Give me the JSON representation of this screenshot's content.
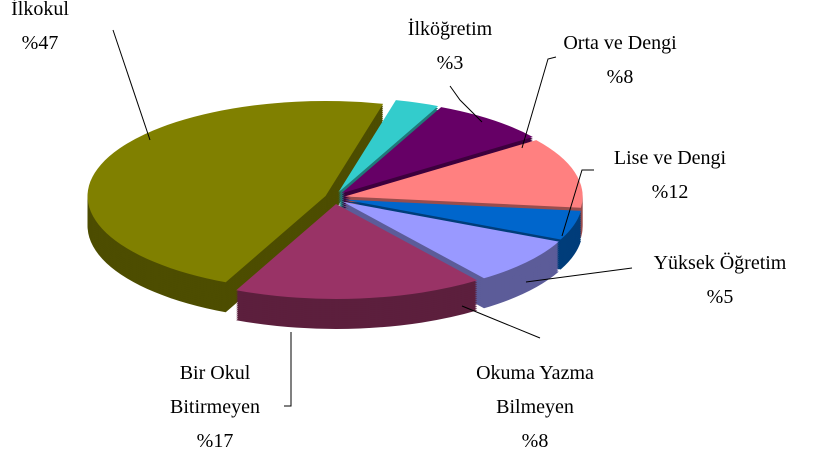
{
  "chart_data": {
    "type": "pie",
    "categories": [
      "İlköğretim",
      "Orta ve Dengi",
      "Lise ve Dengi",
      "Yüksek Öğretim",
      "Okuma Yazma Bilmeyen",
      "Bir Okul Bitirmeyen",
      "İlkokul"
    ],
    "values": [
      3,
      8,
      12,
      5,
      8,
      17,
      47
    ],
    "value_labels": [
      "%3",
      "%8",
      "%12",
      "%5",
      "%8",
      "%17",
      "%47"
    ],
    "colors": [
      "#33cccc",
      "#660066",
      "#ff8080",
      "#0066cc",
      "#9999ff",
      "#993366",
      "#808000"
    ]
  }
}
